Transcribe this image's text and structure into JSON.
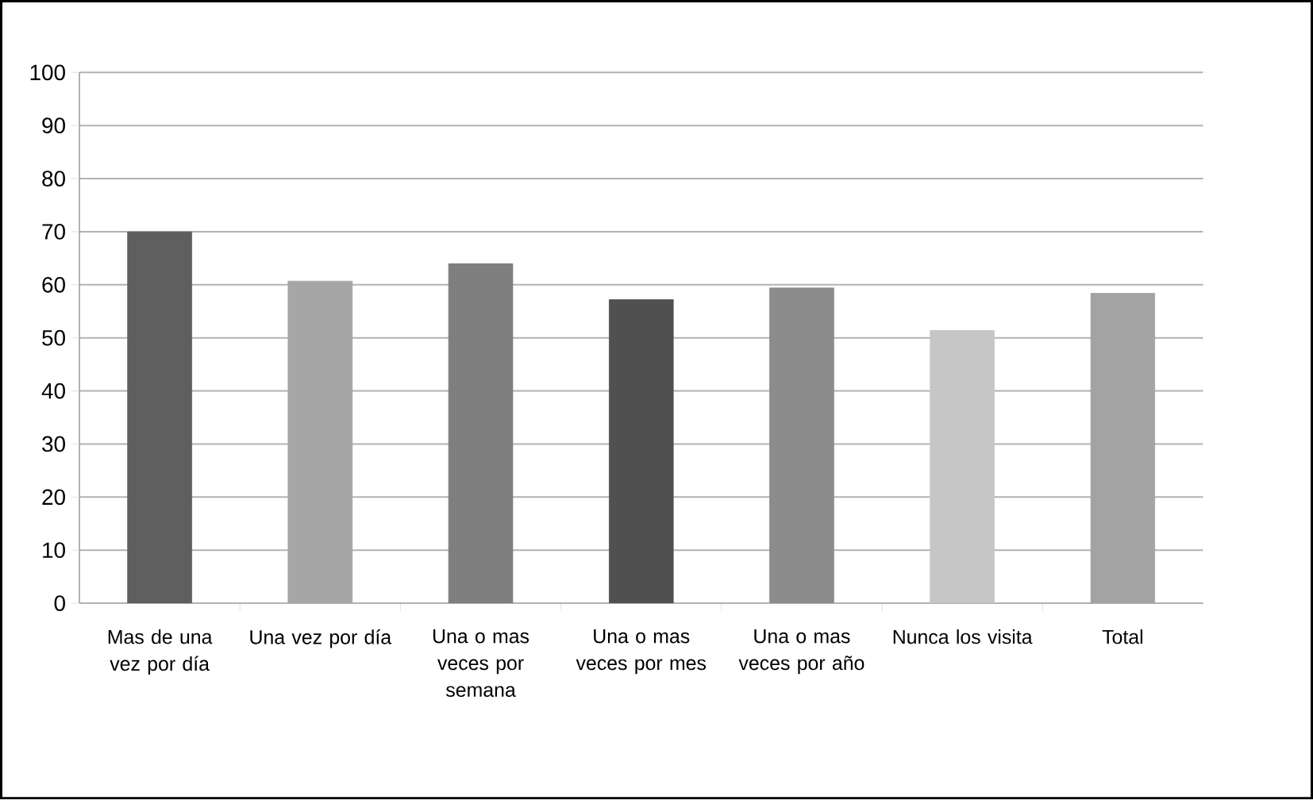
{
  "chart_data": {
    "type": "bar",
    "categories": [
      "Mas de una vez por día",
      "Una vez por día",
      "Una o mas veces por semana",
      "Una o mas veces por mes",
      "Una o mas veces por año",
      "Nunca los visita",
      "Total"
    ],
    "values": [
      70,
      60.7,
      64,
      57.2,
      59.4,
      51.4,
      58.4
    ],
    "colors": [
      "#5f5f5f",
      "#a6a6a6",
      "#7f7f7f",
      "#505050",
      "#8c8c8c",
      "#c6c6c6",
      "#a3a3a3"
    ],
    "ylim": [
      0,
      100
    ],
    "yticks": [
      0,
      10,
      20,
      30,
      40,
      50,
      60,
      70,
      80,
      90,
      100
    ],
    "grid": "y"
  }
}
